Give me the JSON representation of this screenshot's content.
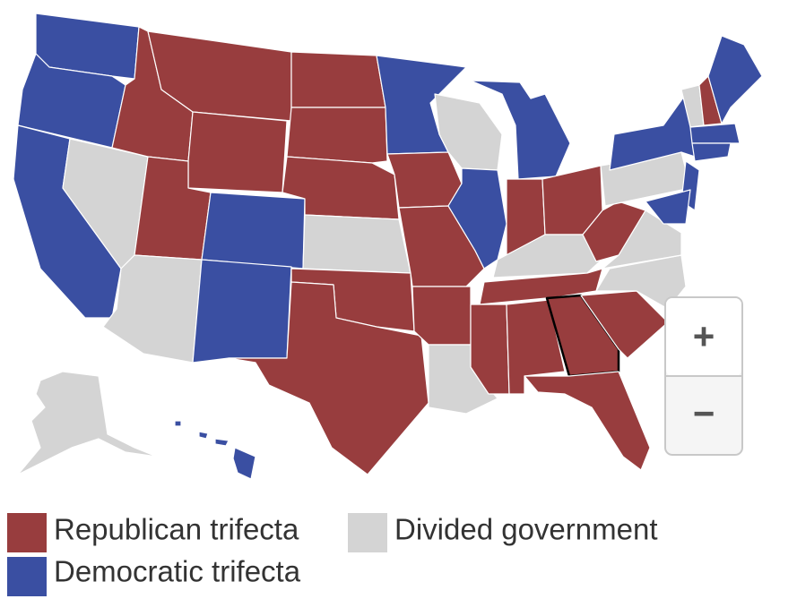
{
  "legend": {
    "items": [
      {
        "label": "Republican trifecta",
        "color": "#983d3e"
      },
      {
        "label": "Divided government",
        "color": "#d4d4d4"
      },
      {
        "label": "Democratic trifecta",
        "color": "#3a4fa2"
      }
    ]
  },
  "zoom_controls": {
    "zoom_in": "+",
    "zoom_out": "−"
  }
}
